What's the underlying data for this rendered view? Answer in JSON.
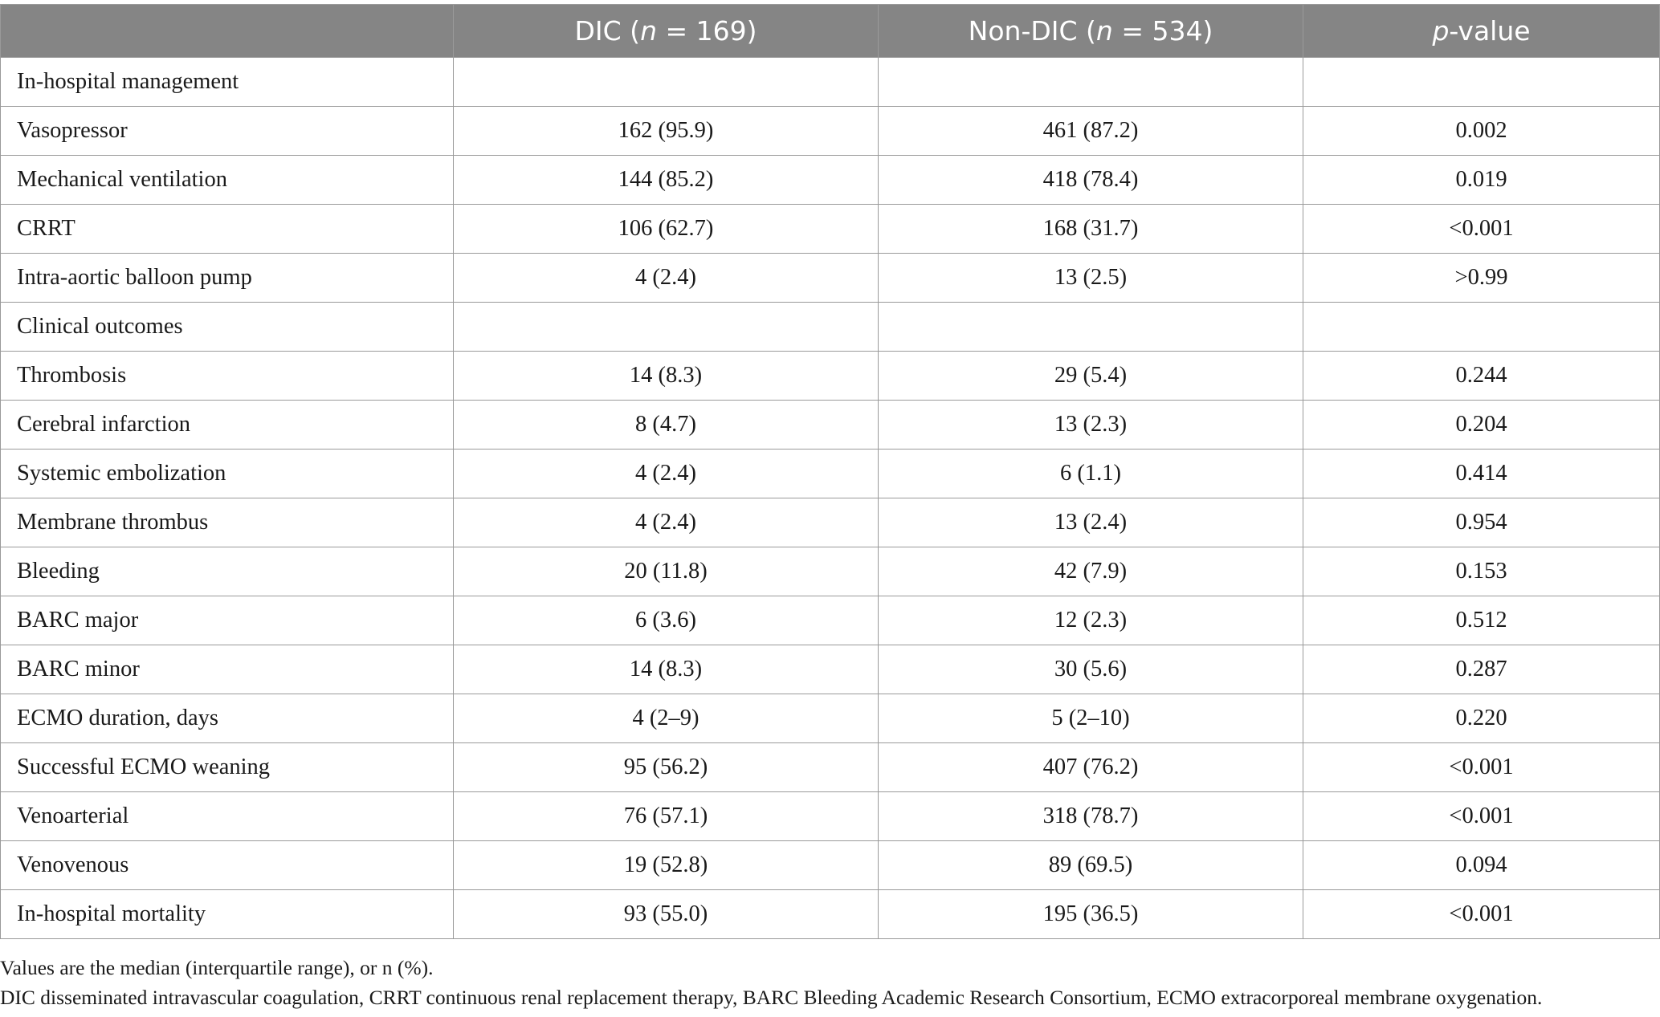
{
  "header": {
    "col0": "",
    "col1_pre": "DIC (",
    "col1_n": "n",
    "col1_post": " = 169)",
    "col2_pre": "Non-DIC (",
    "col2_n": "n",
    "col2_post": " = 534)",
    "col3_p": "p",
    "col3_post": "-value"
  },
  "rows": [
    {
      "label": "In-hospital management",
      "dic": "",
      "nondic": "",
      "p": ""
    },
    {
      "label": "Vasopressor",
      "dic": "162 (95.9)",
      "nondic": "461 (87.2)",
      "p": "0.002"
    },
    {
      "label": "Mechanical ventilation",
      "dic": "144 (85.2)",
      "nondic": "418 (78.4)",
      "p": "0.019"
    },
    {
      "label": "CRRT",
      "dic": "106 (62.7)",
      "nondic": "168 (31.7)",
      "p": "<0.001"
    },
    {
      "label": "Intra-aortic balloon pump",
      "dic": "4 (2.4)",
      "nondic": "13 (2.5)",
      "p": ">0.99"
    },
    {
      "label": "Clinical outcomes",
      "dic": "",
      "nondic": "",
      "p": ""
    },
    {
      "label": "Thrombosis",
      "dic": "14 (8.3)",
      "nondic": "29 (5.4)",
      "p": "0.244"
    },
    {
      "label": "Cerebral infarction",
      "dic": "8 (4.7)",
      "nondic": "13 (2.3)",
      "p": "0.204"
    },
    {
      "label": "Systemic embolization",
      "dic": "4 (2.4)",
      "nondic": "6 (1.1)",
      "p": "0.414"
    },
    {
      "label": "Membrane thrombus",
      "dic": "4 (2.4)",
      "nondic": "13 (2.4)",
      "p": "0.954"
    },
    {
      "label": "Bleeding",
      "dic": "20 (11.8)",
      "nondic": "42 (7.9)",
      "p": "0.153"
    },
    {
      "label": "BARC major",
      "dic": "6 (3.6)",
      "nondic": "12 (2.3)",
      "p": "0.512"
    },
    {
      "label": "BARC minor",
      "dic": "14 (8.3)",
      "nondic": "30 (5.6)",
      "p": "0.287"
    },
    {
      "label": "ECMO duration, days",
      "dic": "4 (2–9)",
      "nondic": "5 (2–10)",
      "p": "0.220"
    },
    {
      "label": "Successful ECMO weaning",
      "dic": "95 (56.2)",
      "nondic": "407 (76.2)",
      "p": "<0.001"
    },
    {
      "label": "Venoarterial",
      "dic": "76 (57.1)",
      "nondic": "318 (78.7)",
      "p": "<0.001"
    },
    {
      "label": "Venovenous",
      "dic": "19 (52.8)",
      "nondic": "89 (69.5)",
      "p": "0.094"
    },
    {
      "label": "In-hospital mortality",
      "dic": "93 (55.0)",
      "nondic": "195 (36.5)",
      "p": "<0.001"
    }
  ],
  "notes": {
    "line1": "Values are the median (interquartile range), or n (%).",
    "line2": "DIC disseminated intravascular coagulation, CRRT continuous renal replacement therapy, BARC Bleeding Academic Research Consortium, ECMO extracorporeal membrane oxygenation."
  },
  "colors": {
    "header_bg": "#858585",
    "header_text": "#ffffff",
    "border": "#9a9a9a"
  }
}
